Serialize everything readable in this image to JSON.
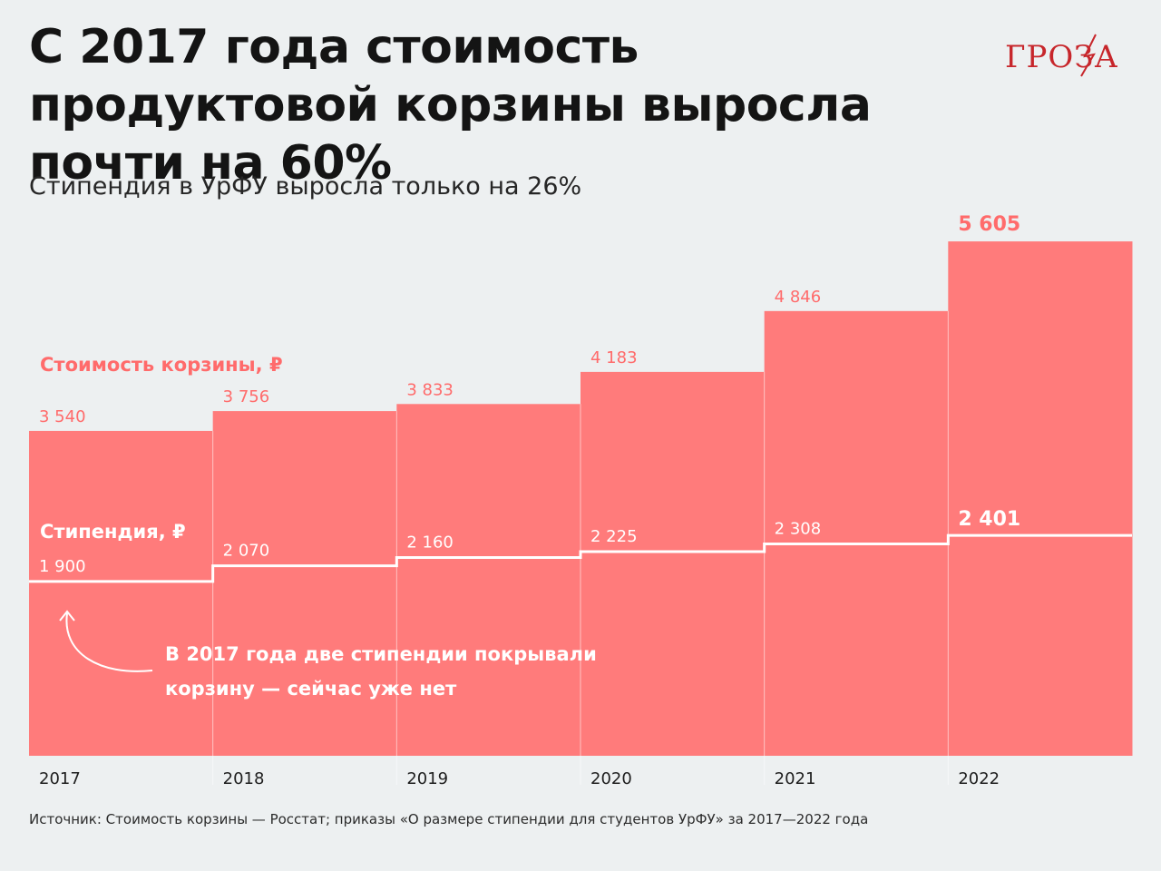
{
  "header": {
    "title": "С 2017 года стоимость продуктовой корзины выросла почти на 60%",
    "subtitle": "Стипендия в УрФУ выросла только на 26%",
    "logo_text": "ГРОЗА"
  },
  "chart_data": {
    "type": "bar",
    "categories": [
      "2017",
      "2018",
      "2019",
      "2020",
      "2021",
      "2022"
    ],
    "series": [
      {
        "name": "Стоимость корзины, ₽",
        "values": [
          3540,
          3756,
          3833,
          4183,
          4846,
          5605
        ],
        "labels": [
          "3 540",
          "3 756",
          "3 833",
          "4 183",
          "4 846",
          "5 605"
        ]
      },
      {
        "name": "Стипендия, ₽",
        "values": [
          1900,
          2070,
          2160,
          2225,
          2308,
          2401
        ],
        "labels": [
          "1 900",
          "2 070",
          "2 160",
          "2 225",
          "2 308",
          "2 401"
        ]
      }
    ],
    "annotation": "В 2017 года две стипендии покрывали корзину — сейчас уже нет",
    "ylim": [
      0,
      6100
    ],
    "colors": {
      "basket": "#ff7b7b",
      "basket_label": "#ff6b6b",
      "stipend_line": "#ffffff",
      "last_basket_label": "#ff6b6b"
    }
  },
  "footer": {
    "source": "Источник: Стоимость корзины — Росстат; приказы «О размере стипендии для студентов УрФУ» за 2017—2022 года"
  }
}
